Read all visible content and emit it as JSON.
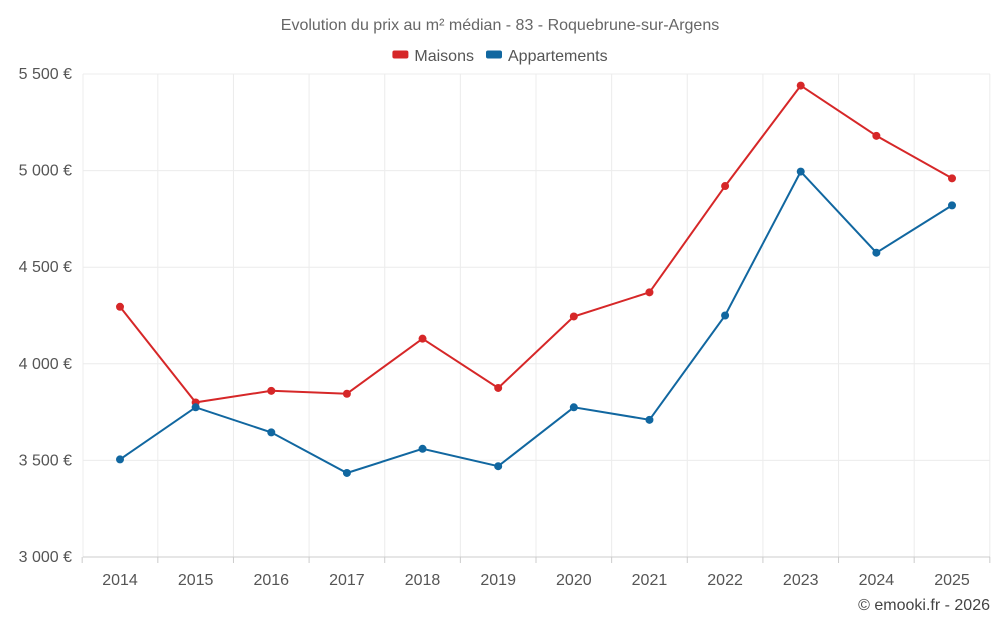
{
  "chart_data": {
    "type": "line",
    "title": "Evolution du prix au m² médian - 83 - Roquebrune-sur-Argens",
    "categories": [
      "2014",
      "2015",
      "2016",
      "2017",
      "2018",
      "2019",
      "2020",
      "2021",
      "2022",
      "2023",
      "2024",
      "2025"
    ],
    "series": [
      {
        "name": "Maisons",
        "color": "#d62728",
        "values": [
          4295,
          3800,
          3860,
          3845,
          4130,
          3875,
          4245,
          4370,
          4920,
          5440,
          5180,
          4960
        ]
      },
      {
        "name": "Appartements",
        "color": "#1167a0",
        "values": [
          3505,
          3775,
          3645,
          3435,
          3560,
          3470,
          3775,
          3710,
          4250,
          4995,
          4575,
          4820
        ]
      }
    ],
    "ylim": [
      3000,
      5500
    ],
    "yticks": [
      3000,
      3500,
      4000,
      4500,
      5000,
      5500
    ],
    "ytick_labels": [
      "3 000 €",
      "3 500 €",
      "4 000 €",
      "4 500 €",
      "5 000 €",
      "5 500 €"
    ],
    "xlabel": "",
    "ylabel": "",
    "grid": true,
    "legend_position": "top-center"
  },
  "credit": "© emooki.fr - 2026"
}
